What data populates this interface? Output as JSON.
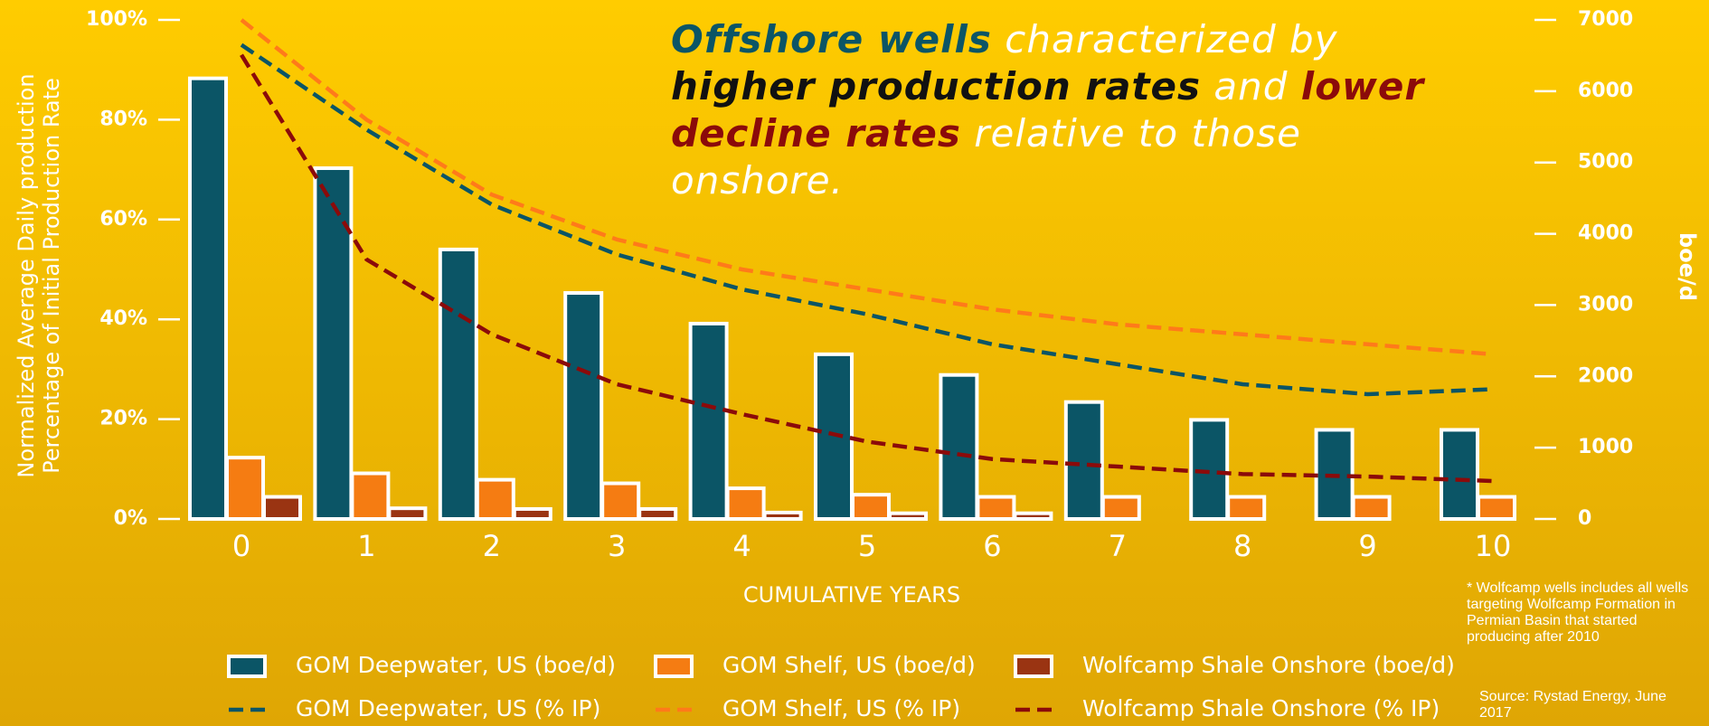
{
  "chart_data": {
    "type": "bar",
    "title_parts": [
      {
        "text": "Offshore wells",
        "color": "#0b5566",
        "bold": true
      },
      {
        "text": "characterized by",
        "color": "#ffffff",
        "bold": false
      },
      {
        "text": "higher production rates",
        "color": "#111111",
        "bold": true
      },
      {
        "text": "and",
        "color": "#ffffff",
        "bold": false
      },
      {
        "text": "lower decline rates",
        "color": "#8b0a0a",
        "bold": true
      },
      {
        "text": "relative to those onshore.",
        "color": "#ffffff",
        "bold": false
      }
    ],
    "y_label": [
      "Normalized Average Daily production",
      "Percentage of Initial Production Rate"
    ],
    "y2_label": "boe/d",
    "x_label": "CUMULATIVE YEARS",
    "footnote": "* Wolfcamp wells includes all wells targeting Wolfcamp Formation in Permian Basin that started producing after 2010",
    "source": "Source: Rystad Energy, June 2017",
    "categories": [
      "0",
      "1",
      "2",
      "3",
      "4",
      "5",
      "6",
      "7",
      "8",
      "9",
      "10"
    ],
    "ylim": [
      0,
      100
    ],
    "yticks": [
      {
        "value": 0,
        "label": "0%"
      },
      {
        "value": 20,
        "label": "20%"
      },
      {
        "value": 40,
        "label": "40%"
      },
      {
        "value": 60,
        "label": "60%"
      },
      {
        "value": 80,
        "label": "80%"
      },
      {
        "value": 100,
        "label": "100%"
      }
    ],
    "y2lim": [
      0,
      7000
    ],
    "y2ticks": [
      0,
      1000,
      2000,
      3000,
      4000,
      5000,
      6000,
      7000
    ],
    "series": [
      {
        "name": "GOM Deepwater, US (boe/d)",
        "type": "bar",
        "axis": "y2",
        "color": "#0b5566",
        "values": [
          6180,
          4920,
          3780,
          3170,
          2740,
          2310,
          2020,
          1640,
          1390,
          1250,
          1250
        ]
      },
      {
        "name": "GOM Shelf, US (boe/d)",
        "type": "bar",
        "axis": "y2",
        "color": "#f57c12",
        "values": [
          860,
          640,
          550,
          500,
          430,
          340,
          310,
          310,
          310,
          310,
          310
        ]
      },
      {
        "name": "Wolfcamp Shale Onshore (boe/d)",
        "type": "bar",
        "axis": "y2",
        "color": "#9a3412",
        "values": [
          310,
          150,
          140,
          140,
          90,
          80,
          80,
          null,
          null,
          null,
          null
        ]
      },
      {
        "name": "GOM Deepwater, US (% IP)",
        "type": "line",
        "color": "#0b5566",
        "values": [
          95,
          78,
          63,
          53,
          46,
          41,
          35,
          31,
          27,
          25,
          26
        ]
      },
      {
        "name": "GOM Shelf, US  (% IP)",
        "type": "line",
        "color": "#ff7a1a",
        "values": [
          100,
          80,
          65,
          56,
          50,
          46,
          42,
          39,
          37,
          35,
          33
        ]
      },
      {
        "name": "Wolfcamp Shale Onshore (% IP)",
        "type": "line",
        "color": "#8b0a0a",
        "values": [
          93,
          52,
          37,
          27,
          21,
          15.5,
          12,
          10.5,
          9,
          8.5,
          7.6
        ]
      }
    ]
  }
}
